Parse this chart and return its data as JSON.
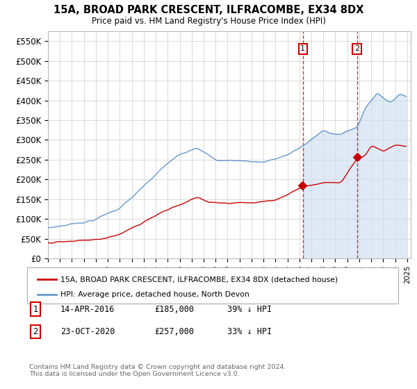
{
  "title": "15A, BROAD PARK CRESCENT, ILFRACOMBE, EX34 8DX",
  "subtitle": "Price paid vs. HM Land Registry's House Price Index (HPI)",
  "ylabel_ticks": [
    "£0",
    "£50K",
    "£100K",
    "£150K",
    "£200K",
    "£250K",
    "£300K",
    "£350K",
    "£400K",
    "£450K",
    "£500K",
    "£550K"
  ],
  "ytick_values": [
    0,
    50000,
    100000,
    150000,
    200000,
    250000,
    300000,
    350000,
    400000,
    450000,
    500000,
    550000
  ],
  "x_start_year": 1995,
  "x_end_year": 2025,
  "purchase1_year": 2016.29,
  "purchase1_price": 185000,
  "purchase2_year": 2020.81,
  "purchase2_price": 257000,
  "red_color": "#cc0000",
  "blue_color": "#6699cc",
  "blue_fill_color": "#ccddf0",
  "legend1": "15A, BROAD PARK CRESCENT, ILFRACOMBE, EX34 8DX (detached house)",
  "legend2": "HPI: Average price, detached house, North Devon",
  "note1_label": "1",
  "note1_date": "14-APR-2016",
  "note1_price": "£185,000",
  "note1_pct": "39% ↓ HPI",
  "note2_label": "2",
  "note2_date": "23-OCT-2020",
  "note2_price": "£257,000",
  "note2_pct": "33% ↓ HPI",
  "footnote": "Contains HM Land Registry data © Crown copyright and database right 2024.\nThis data is licensed under the Open Government Licence v3.0.",
  "background_color": "#ffffff",
  "grid_color": "#cccccc"
}
